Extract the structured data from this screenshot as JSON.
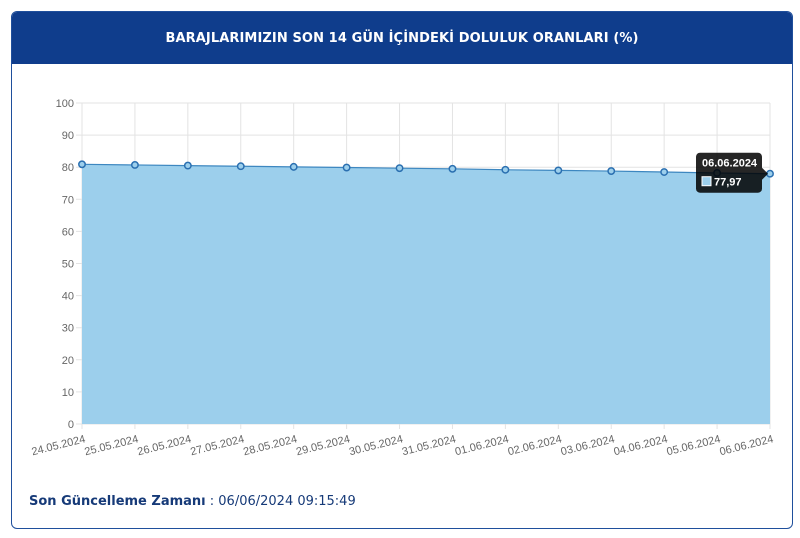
{
  "header": {
    "title": "BARAJLARIMIZIN SON 14 GÜN İÇİNDEKİ DOLULUK ORANLARI (%)"
  },
  "footer": {
    "label": "Son Güncelleme Zamanı",
    "separator": " : ",
    "value": "06/06/2024 09:15:49"
  },
  "tooltip": {
    "date": "06.06.2024",
    "value": "77,97"
  },
  "colors": {
    "header_bg": "#0f3d8c",
    "area_fill": "#9ccfec",
    "line": "#3d87c0",
    "point": "#2a6fb0"
  },
  "chart_data": {
    "type": "area",
    "categories": [
      "24.05.2024",
      "25.05.2024",
      "26.05.2024",
      "27.05.2024",
      "28.05.2024",
      "29.05.2024",
      "30.05.2024",
      "31.05.2024",
      "01.06.2024",
      "02.06.2024",
      "03.06.2024",
      "04.06.2024",
      "05.06.2024",
      "06.06.2024"
    ],
    "values": [
      80.9,
      80.7,
      80.5,
      80.3,
      80.1,
      79.9,
      79.7,
      79.5,
      79.2,
      79.0,
      78.8,
      78.5,
      78.2,
      77.97
    ],
    "ylim": [
      0,
      100
    ],
    "yticks": [
      0,
      10,
      20,
      30,
      40,
      50,
      60,
      70,
      80,
      90,
      100
    ],
    "grid": true,
    "title": "",
    "xlabel": "",
    "ylabel": ""
  }
}
